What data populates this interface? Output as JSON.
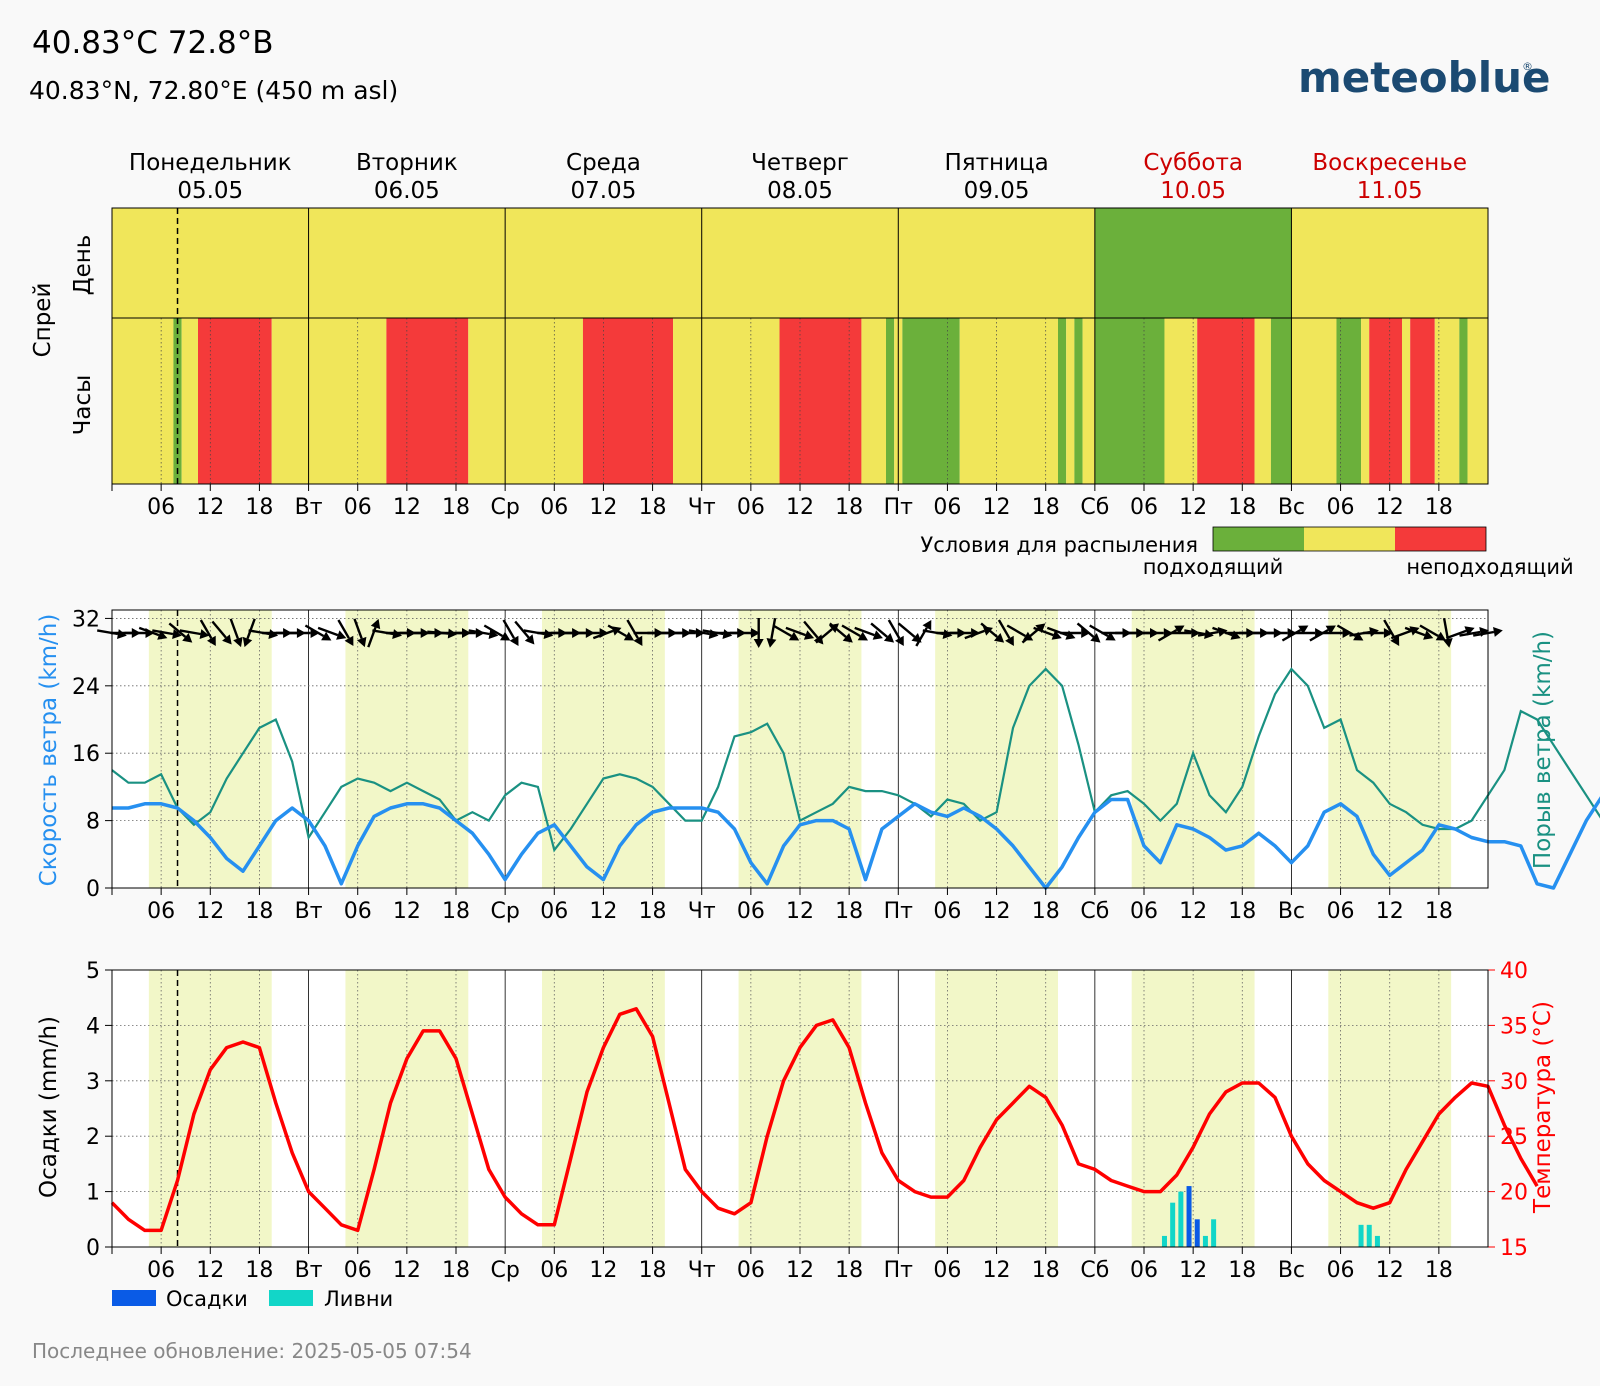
{
  "header": {
    "title": "40.83°C 72.8°B",
    "subtitle": "40.83°N, 72.80°E (450 m asl)",
    "logo": "meteoblue",
    "logo_reg": "®"
  },
  "footer": {
    "last_update": "Последнее обновление: 2025-05-05 07:54"
  },
  "colors": {
    "suitable": "#6bb03b",
    "moderate": "#f0e65a",
    "unsuitable": "#f43a3a",
    "day_band": "#f2f7c8",
    "wind_speed": "#2690f0",
    "wind_gust": "#1a9182",
    "temperature": "#ff0000",
    "precip": "#0a5be6",
    "showers": "#12d6c8",
    "weekend": "#cc0000",
    "logo": "#1b4a72"
  },
  "days": [
    {
      "name": "Понедельник",
      "date": "05.05",
      "short": "",
      "weekend": false
    },
    {
      "name": "Вторник",
      "date": "06.05",
      "short": "Вт",
      "weekend": false
    },
    {
      "name": "Среда",
      "date": "07.05",
      "short": "Ср",
      "weekend": false
    },
    {
      "name": "Четверг",
      "date": "08.05",
      "short": "Чт",
      "weekend": false
    },
    {
      "name": "Пятница",
      "date": "09.05",
      "short": "Пт",
      "weekend": false
    },
    {
      "name": "Суббота",
      "date": "10.05",
      "short": "Сб",
      "weekend": true
    },
    {
      "name": "Воскресенье",
      "date": "11.05",
      "short": "Вс",
      "weekend": true
    }
  ],
  "hour_labels": [
    "06",
    "12",
    "18"
  ],
  "now_hour": 8,
  "daylight_hours": [
    4.5,
    19.5
  ],
  "chart_data": [
    {
      "type": "heatmap",
      "title": "",
      "ylabel": "Спрей",
      "row_labels": [
        "День",
        "Часы"
      ],
      "legend_title": "Условия для распыления",
      "legend_labels": [
        "подходящий",
        "неподходящий"
      ],
      "legend_placement": "bottom-right",
      "daily": [
        "moderate",
        "moderate",
        "moderate",
        "moderate",
        "moderate",
        "suitable",
        "moderate"
      ],
      "hourly": [
        [
          0,
          7.5,
          "moderate"
        ],
        [
          7.5,
          8.5,
          "suitable"
        ],
        [
          8.5,
          10.5,
          "moderate"
        ],
        [
          10.5,
          19.5,
          "unsuitable"
        ],
        [
          19.5,
          24,
          "moderate"
        ],
        [
          24,
          33.5,
          "moderate"
        ],
        [
          33.5,
          43.5,
          "unsuitable"
        ],
        [
          43.5,
          48,
          "moderate"
        ],
        [
          48,
          57.5,
          "moderate"
        ],
        [
          57.5,
          68.5,
          "unsuitable"
        ],
        [
          68.5,
          72,
          "moderate"
        ],
        [
          72,
          81.5,
          "moderate"
        ],
        [
          81.5,
          91.5,
          "unsuitable"
        ],
        [
          91.5,
          94.5,
          "moderate"
        ],
        [
          94.5,
          95.5,
          "suitable"
        ],
        [
          95.5,
          96.5,
          "moderate"
        ],
        [
          96.5,
          103.5,
          "suitable"
        ],
        [
          103.5,
          115.5,
          "moderate"
        ],
        [
          115.5,
          116.5,
          "suitable"
        ],
        [
          116.5,
          117.5,
          "moderate"
        ],
        [
          117.5,
          118.5,
          "suitable"
        ],
        [
          118.5,
          120,
          "moderate"
        ],
        [
          120,
          128.5,
          "suitable"
        ],
        [
          128.5,
          132.5,
          "moderate"
        ],
        [
          132.5,
          139.5,
          "unsuitable"
        ],
        [
          139.5,
          141.5,
          "moderate"
        ],
        [
          141.5,
          144,
          "suitable"
        ],
        [
          144,
          149.5,
          "moderate"
        ],
        [
          149.5,
          152.5,
          "suitable"
        ],
        [
          152.5,
          153.5,
          "moderate"
        ],
        [
          153.5,
          157.5,
          "unsuitable"
        ],
        [
          157.5,
          158.5,
          "moderate"
        ],
        [
          158.5,
          161.5,
          "unsuitable"
        ],
        [
          161.5,
          164.5,
          "moderate"
        ],
        [
          164.5,
          165.5,
          "suitable"
        ],
        [
          165.5,
          168,
          "moderate"
        ]
      ]
    },
    {
      "type": "line",
      "title": "",
      "ylabel": "Скорость ветра (km/h)",
      "ylabel_right": "Порыв ветра (km/h)",
      "ylim": [
        0,
        33
      ],
      "yticks": [
        0,
        8,
        16,
        24,
        32
      ],
      "x_step_hours": 2,
      "series": [
        {
          "key": "speed",
          "values": [
            9.5,
            9.5,
            10,
            10,
            9.5,
            8,
            6,
            3.5,
            2,
            5,
            8,
            9.5,
            8,
            5,
            0.5,
            5,
            8.5,
            9.5,
            10,
            10,
            9.5,
            8,
            6.5,
            4,
            1,
            4,
            6.5,
            7.5,
            5,
            2.5,
            1,
            5,
            7.5,
            9,
            9.5,
            9.5,
            9.5,
            9,
            7,
            3,
            0.5,
            5,
            7.5,
            8,
            8,
            7,
            1,
            7,
            8.5,
            10,
            9,
            8.5,
            9.5,
            8.5,
            7,
            5,
            2.5,
            0,
            2.5,
            6,
            9,
            10.5,
            10.5,
            5,
            3,
            7.5,
            7,
            6,
            4.5,
            5,
            6.5,
            5,
            3,
            5,
            9,
            10,
            8.5,
            4,
            1.5,
            3,
            4.5,
            7.5,
            7,
            6,
            5.5,
            5.5,
            5,
            0.5,
            0,
            4,
            8,
            11,
            11,
            9,
            2,
            4,
            5,
            6.5,
            9,
            8.5,
            7,
            6.5,
            4.5,
            3,
            1.5,
            2,
            3,
            2.5,
            2,
            5,
            8,
            9
          ]
        },
        {
          "key": "gust",
          "values": [
            14,
            12.5,
            12.5,
            13.5,
            9.5,
            7.5,
            9,
            13,
            16,
            19,
            20,
            15,
            6,
            9,
            12,
            13,
            12.5,
            11.5,
            12.5,
            11.5,
            10.5,
            8,
            9,
            8,
            11,
            12.5,
            12,
            4.5,
            7,
            10,
            13,
            13.5,
            13,
            12,
            10,
            8,
            8,
            12,
            18,
            18.5,
            19.5,
            16,
            8,
            9,
            10,
            12,
            11.5,
            11.5,
            11,
            10,
            8.5,
            10.5,
            10,
            8,
            9,
            19,
            24,
            26,
            24,
            17,
            9,
            11,
            11.5,
            10,
            8,
            10,
            16,
            11,
            9,
            12,
            18,
            23,
            26,
            24,
            19,
            20,
            14,
            12.5,
            10,
            9,
            7.5,
            7,
            7,
            8,
            11,
            14,
            21,
            20,
            17,
            14,
            11,
            8,
            10.5,
            12.5,
            14,
            15,
            12.5,
            12,
            14,
            20,
            22,
            20,
            12,
            9,
            9.5,
            10.5,
            9.5,
            9,
            11,
            12.5,
            13
          ]
        }
      ]
    },
    {
      "type": "line",
      "title": "",
      "ylabel": "Осадки (mm/h)",
      "ylabel_right": "Температура (°C)",
      "ylim": [
        0,
        5
      ],
      "ylim_right": [
        15,
        40
      ],
      "yticks": [
        0,
        1,
        2,
        3,
        4,
        5
      ],
      "yticks_right": [
        15,
        20,
        25,
        30,
        35,
        40
      ],
      "x_step_hours": 2,
      "legend": [
        "Осадки",
        "Ливни"
      ],
      "legend_placement": "bottom-left",
      "temperature": [
        19,
        17.5,
        16.5,
        16.5,
        21,
        27,
        31,
        33,
        33.5,
        33,
        28,
        23.5,
        20,
        18.5,
        17,
        16.5,
        22,
        28,
        32,
        34.5,
        34.5,
        32,
        27,
        22,
        19.5,
        18,
        17,
        17,
        23,
        29,
        33,
        36,
        36.5,
        34,
        28,
        22,
        20,
        18.5,
        18,
        19,
        25,
        30,
        33,
        35,
        35.5,
        33,
        28,
        23.5,
        21,
        20,
        19.5,
        19.5,
        21,
        24,
        26.5,
        28,
        29.5,
        28.5,
        26,
        22.5,
        22,
        21,
        20.5,
        20,
        20,
        21.5,
        24,
        27,
        29,
        29.8,
        29.8,
        28.5,
        25,
        22.5,
        21,
        20,
        19,
        18.5,
        19,
        22,
        24.5,
        27,
        28.5,
        29.8,
        29.5,
        26,
        23,
        20.5
      ],
      "bars": [
        {
          "hour": 128.5,
          "precip": 0,
          "showers": 0.2
        },
        {
          "hour": 129.5,
          "precip": 0,
          "showers": 0.8
        },
        {
          "hour": 130.5,
          "precip": 0,
          "showers": 1.0
        },
        {
          "hour": 131.5,
          "precip": 1.1,
          "showers": 0
        },
        {
          "hour": 132.5,
          "precip": 0.5,
          "showers": 0
        },
        {
          "hour": 133.5,
          "precip": 0,
          "showers": 0.2
        },
        {
          "hour": 134.5,
          "precip": 0,
          "showers": 0.5
        },
        {
          "hour": 152.5,
          "precip": 0,
          "showers": 0.4
        },
        {
          "hour": 153.5,
          "precip": 0,
          "showers": 0.4
        },
        {
          "hour": 154.5,
          "precip": 0,
          "showers": 0.2
        }
      ]
    }
  ],
  "wind_directions_deg": [
    280,
    270,
    270,
    290,
    280,
    310,
    280,
    330,
    320,
    340,
    20,
    280,
    270,
    270,
    270,
    300,
    290,
    330,
    340,
    200,
    280,
    270,
    270,
    270,
    275,
    270,
    270,
    280,
    300,
    330,
    320,
    280,
    270,
    270,
    270,
    270,
    250,
    300,
    330,
    270,
    270,
    270,
    270,
    280,
    280,
    270,
    270,
    0,
    10,
    300,
    290,
    320,
    230,
    310,
    300,
    290,
    310,
    330,
    310,
    210,
    280,
    270,
    270,
    250,
    310,
    330,
    300,
    230,
    290,
    290,
    270,
    310,
    300,
    270,
    270,
    270,
    270,
    240,
    270,
    280,
    260,
    290,
    270,
    270,
    270,
    270,
    240,
    270,
    240,
    270,
    300,
    260,
    270,
    330,
    250,
    290,
    300,
    350,
    250,
    260,
    260
  ]
}
